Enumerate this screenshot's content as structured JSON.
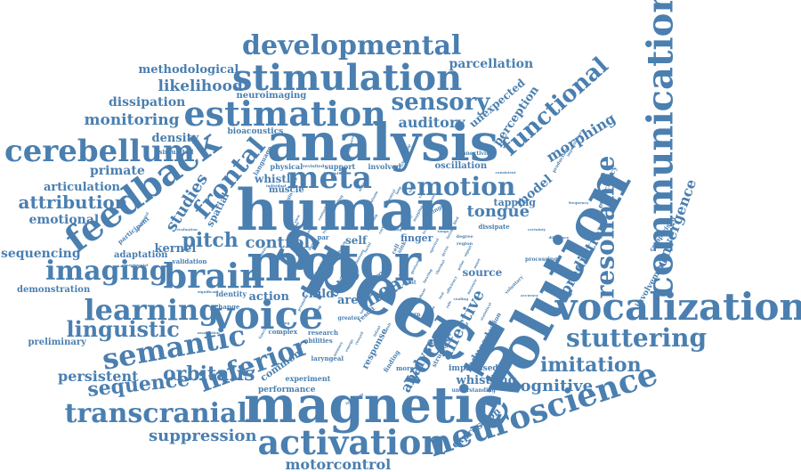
{
  "color": "#4a7fb0",
  "words": [
    {
      "text": "speech",
      "weight": 1.0,
      "orientation": "rotated"
    },
    {
      "text": "evolution",
      "weight": 0.9,
      "orientation": "rotated"
    },
    {
      "text": "human",
      "weight": 0.95,
      "orientation": "horizontal"
    },
    {
      "text": "analysis",
      "weight": 0.9,
      "orientation": "horizontal"
    },
    {
      "text": "magnetic",
      "weight": 0.85,
      "orientation": "horizontal"
    },
    {
      "text": "motor",
      "weight": 0.85,
      "orientation": "horizontal"
    },
    {
      "text": "voice",
      "weight": 0.7,
      "orientation": "horizontal"
    },
    {
      "text": "communication",
      "weight": 0.65,
      "orientation": "vertical"
    },
    {
      "text": "vocalization",
      "weight": 0.6,
      "orientation": "horizontal"
    },
    {
      "text": "neuroscience",
      "weight": 0.55,
      "orientation": "rotated"
    },
    {
      "text": "activation",
      "weight": 0.55,
      "orientation": "horizontal"
    },
    {
      "text": "stimulation",
      "weight": 0.55,
      "orientation": "horizontal"
    },
    {
      "text": "estimation",
      "weight": 0.5,
      "orientation": "horizontal"
    },
    {
      "text": "feedback",
      "weight": 0.55,
      "orientation": "rotated"
    },
    {
      "text": "brain",
      "weight": 0.5,
      "orientation": "horizontal"
    },
    {
      "text": "developmental",
      "weight": 0.45,
      "orientation": "horizontal"
    },
    {
      "text": "meta",
      "weight": 0.45,
      "orientation": "horizontal"
    },
    {
      "text": "cerebellum",
      "weight": 0.4,
      "orientation": "horizontal"
    },
    {
      "text": "learning",
      "weight": 0.4,
      "orientation": "horizontal"
    },
    {
      "text": "semantic",
      "weight": 0.4,
      "orientation": "horizontal"
    },
    {
      "text": "transcranial",
      "weight": 0.4,
      "orientation": "horizontal"
    },
    {
      "text": "imaging",
      "weight": 0.38,
      "orientation": "horizontal"
    },
    {
      "text": "emotion",
      "weight": 0.35,
      "orientation": "horizontal"
    },
    {
      "text": "stuttering",
      "weight": 0.35,
      "orientation": "horizontal"
    },
    {
      "text": "inferior",
      "weight": 0.38,
      "orientation": "rotated"
    },
    {
      "text": "resonance",
      "weight": 0.35,
      "orientation": "vertical"
    },
    {
      "text": "vocal",
      "weight": 0.35,
      "orientation": "rotated"
    },
    {
      "text": "frontal",
      "weight": 0.3,
      "orientation": "rotated"
    },
    {
      "text": "sensory",
      "weight": 0.3,
      "orientation": "horizontal"
    },
    {
      "text": "functional",
      "weight": 0.3,
      "orientation": "rotated"
    },
    {
      "text": "linguistic",
      "weight": 0.3,
      "orientation": "horizontal"
    },
    {
      "text": "imitation",
      "weight": 0.28,
      "orientation": "horizontal"
    },
    {
      "text": "sequence",
      "weight": 0.28,
      "orientation": "horizontal"
    },
    {
      "text": "suppression",
      "weight": 0.25,
      "orientation": "horizontal"
    },
    {
      "text": "orbitalis",
      "weight": 0.25,
      "orientation": "horizontal"
    },
    {
      "text": "attribution",
      "weight": 0.25,
      "orientation": "horizontal"
    },
    {
      "text": "pitch",
      "weight": 0.28,
      "orientation": "horizontal"
    },
    {
      "text": "heat",
      "weight": 0.28,
      "orientation": "rotated"
    },
    {
      "text": "cognitive",
      "weight": 0.25,
      "orientation": "horizontal"
    },
    {
      "text": "tongue",
      "weight": 0.22,
      "orientation": "horizontal"
    },
    {
      "text": "control",
      "weight": 0.22,
      "orientation": "horizontal"
    },
    {
      "text": "convergence",
      "weight": 0.2,
      "orientation": "rotated"
    },
    {
      "text": "prediction",
      "weight": 0.2,
      "orientation": "rotated"
    },
    {
      "text": "morphing",
      "weight": 0.2,
      "orientation": "rotated"
    },
    {
      "text": "perception",
      "weight": 0.18,
      "orientation": "rotated"
    },
    {
      "text": "affective",
      "weight": 0.2,
      "orientation": "rotated"
    },
    {
      "text": "analyse",
      "weight": 0.18,
      "orientation": "rotated"
    },
    {
      "text": "motorcontrol",
      "weight": 0.2,
      "orientation": "horizontal"
    },
    {
      "text": "persistent",
      "weight": 0.2,
      "orientation": "horizontal"
    },
    {
      "text": "likelihood",
      "weight": 0.2,
      "orientation": "horizontal"
    },
    {
      "text": "monitoring",
      "weight": 0.2,
      "orientation": "horizontal"
    },
    {
      "text": "auditory",
      "weight": 0.2,
      "orientation": "horizontal"
    },
    {
      "text": "studies",
      "weight": 0.2,
      "orientation": "rotated"
    },
    {
      "text": "sequencing",
      "weight": 0.18,
      "orientation": "horizontal"
    },
    {
      "text": "emotional",
      "weight": 0.18,
      "orientation": "horizontal"
    },
    {
      "text": "parcellation",
      "weight": 0.16,
      "orientation": "horizontal"
    },
    {
      "text": "methodological",
      "weight": 0.16,
      "orientation": "horizontal"
    },
    {
      "text": "dissipation",
      "weight": 0.16,
      "orientation": "horizontal"
    },
    {
      "text": "primate",
      "weight": 0.16,
      "orientation": "horizontal"
    },
    {
      "text": "articulation",
      "weight": 0.16,
      "orientation": "horizontal"
    },
    {
      "text": "density",
      "weight": 0.15,
      "orientation": "horizontal"
    },
    {
      "text": "unexpected",
      "weight": 0.14,
      "orientation": "rotated"
    },
    {
      "text": "model",
      "weight": 0.15,
      "orientation": "rotated"
    },
    {
      "text": "expression",
      "weight": 0.14,
      "orientation": "rotated"
    },
    {
      "text": "whistling",
      "weight": 0.14,
      "orientation": "horizontal"
    },
    {
      "text": "kernel",
      "weight": 0.14,
      "orientation": "horizontal"
    },
    {
      "text": "child",
      "weight": 0.14,
      "orientation": "horizontal"
    },
    {
      "text": "area",
      "weight": 0.14,
      "orientation": "horizontal"
    },
    {
      "text": "action",
      "weight": 0.14,
      "orientation": "horizontal"
    },
    {
      "text": "source",
      "weight": 0.13,
      "orientation": "horizontal"
    },
    {
      "text": "spatial",
      "weight": 0.12,
      "orientation": "rotated"
    },
    {
      "text": "tapping",
      "weight": 0.12,
      "orientation": "horizontal"
    },
    {
      "text": "whistle",
      "weight": 0.12,
      "orientation": "horizontal"
    },
    {
      "text": "finger",
      "weight": 0.12,
      "orientation": "horizontal"
    },
    {
      "text": "oscillation",
      "weight": 0.11,
      "orientation": "horizontal"
    },
    {
      "text": "common",
      "weight": 0.12,
      "orientation": "rotated"
    },
    {
      "text": "demonstration",
      "weight": 0.11,
      "orientation": "horizontal"
    },
    {
      "text": "preliminary",
      "weight": 0.11,
      "orientation": "horizontal"
    },
    {
      "text": "adaptation",
      "weight": 0.1,
      "orientation": "horizontal"
    },
    {
      "text": "improvised",
      "weight": 0.1,
      "orientation": "horizontal"
    },
    {
      "text": "neuroimaging",
      "weight": 0.1,
      "orientation": "horizontal"
    },
    {
      "text": "performance",
      "weight": 0.1,
      "orientation": "horizontal"
    },
    {
      "text": "experiment",
      "weight": 0.09,
      "orientation": "horizontal"
    },
    {
      "text": "involvement",
      "weight": 0.09,
      "orientation": "rotated"
    },
    {
      "text": "expectancy",
      "weight": 0.09,
      "orientation": "rotated"
    },
    {
      "text": "self",
      "weight": 0.12,
      "orientation": "horizontal"
    },
    {
      "text": "data",
      "weight": 0.12,
      "orientation": "rotated"
    },
    {
      "text": "induced",
      "weight": 0.12,
      "orientation": "rotated"
    },
    {
      "text": "response",
      "weight": 0.11,
      "orientation": "rotated"
    },
    {
      "text": "muscle",
      "weight": 0.1,
      "orientation": "horizontal"
    },
    {
      "text": "bioacoustics",
      "weight": 0.09,
      "orientation": "horizontal"
    },
    {
      "text": "physical",
      "weight": 0.08,
      "orientation": "horizontal"
    },
    {
      "text": "support",
      "weight": 0.08,
      "orientation": "horizontal"
    },
    {
      "text": "involved",
      "weight": 0.08,
      "orientation": "horizontal"
    },
    {
      "text": "connectivity",
      "weight": 0.06,
      "orientation": "horizontal"
    },
    {
      "text": "language",
      "weight": 0.07,
      "orientation": "rotated"
    },
    {
      "text": "participant",
      "weight": 0.07,
      "orientation": "rotated"
    },
    {
      "text": "identity",
      "weight": 0.08,
      "orientation": "horizontal"
    },
    {
      "text": "validation",
      "weight": 0.07,
      "orientation": "horizontal"
    },
    {
      "text": "simulated",
      "weight": 0.07,
      "orientation": "horizontal"
    },
    {
      "text": "laryngeal",
      "weight": 0.07,
      "orientation": "horizontal"
    },
    {
      "text": "understanding",
      "weight": 0.06,
      "orientation": "horizontal"
    },
    {
      "text": "research",
      "weight": 0.07,
      "orientation": "horizontal"
    },
    {
      "text": "complex",
      "weight": 0.07,
      "orientation": "horizontal"
    },
    {
      "text": "abilities",
      "weight": 0.07,
      "orientation": "horizontal"
    },
    {
      "text": "comparison",
      "weight": 0.07,
      "orientation": "rotated"
    },
    {
      "text": "processing",
      "weight": 0.06,
      "orientation": "horizontal"
    },
    {
      "text": "connection",
      "weight": 0.07,
      "orientation": "rotated"
    },
    {
      "text": "dissipate",
      "weight": 0.07,
      "orientation": "horizontal"
    },
    {
      "text": "pattern",
      "weight": 0.06,
      "orientation": "horizontal"
    },
    {
      "text": "greater",
      "weight": 0.06,
      "orientation": "horizontal"
    },
    {
      "text": "more",
      "weight": 0.07,
      "orientation": "horizontal"
    },
    {
      "text": "change",
      "weight": 0.07,
      "orientation": "horizontal"
    },
    {
      "text": "structure",
      "weight": 0.07,
      "orientation": "rotated"
    },
    {
      "text": "finding",
      "weight": 0.07,
      "orientation": "rotated"
    },
    {
      "text": "joint",
      "weight": 0.06,
      "orientation": "horizontal"
    },
    {
      "text": "error",
      "weight": 0.08,
      "orientation": "rotated"
    },
    {
      "text": "result",
      "weight": 0.07,
      "orientation": "rotated"
    },
    {
      "text": "par",
      "weight": 0.07,
      "orientation": "horizontal"
    },
    {
      "text": "region",
      "weight": 0.05,
      "orientation": "horizontal"
    },
    {
      "text": "degree",
      "weight": 0.05,
      "orientation": "horizontal"
    },
    {
      "text": "improvisation",
      "weight": 0.04,
      "orientation": "rotated"
    },
    {
      "text": "production",
      "weight": 0.05,
      "orientation": "rotated"
    },
    {
      "text": "significant",
      "weight": 0.04,
      "orientation": "horizontal"
    },
    {
      "text": "association",
      "weight": 0.04,
      "orientation": "horizontal"
    },
    {
      "text": "evaluation",
      "weight": 0.04,
      "orientation": "horizontal"
    },
    {
      "text": "experimental",
      "weight": 0.04,
      "orientation": "horizontal"
    },
    {
      "text": "recovered",
      "weight": 0.04,
      "orientation": "rotated"
    },
    {
      "text": "revisited",
      "weight": 0.05,
      "orientation": "horizontal"
    },
    {
      "text": "consistent",
      "weight": 0.04,
      "orientation": "horizontal"
    },
    {
      "text": "relationship",
      "weight": 0.04,
      "orientation": "rotated"
    },
    {
      "text": "singer",
      "weight": 0.06,
      "orientation": "rotated"
    },
    {
      "text": "individual",
      "weight": 0.04,
      "orientation": "horizontal"
    },
    {
      "text": "voluntary",
      "weight": 0.05,
      "orientation": "rotated"
    },
    {
      "text": "frequency",
      "weight": 0.04,
      "orientation": "horizontal"
    },
    {
      "text": "accuracy",
      "weight": 0.04,
      "orientation": "horizontal"
    },
    {
      "text": "difference",
      "weight": 0.04,
      "orientation": "horizontal"
    },
    {
      "text": "tango",
      "weight": 0.04,
      "orientation": "horizontal"
    },
    {
      "text": "certainty",
      "weight": 0.04,
      "orientation": "horizontal"
    },
    {
      "text": "statistical",
      "weight": 0.04,
      "orientation": "rotated"
    },
    {
      "text": "operational",
      "weight": 0.04,
      "orientation": "rotated"
    },
    {
      "text": "cell",
      "weight": 0.06,
      "orientation": "rotated"
    },
    {
      "text": "sink",
      "weight": 0.06,
      "orientation": "rotated"
    },
    {
      "text": "origin",
      "weight": 0.05,
      "orientation": "rotated"
    },
    {
      "text": "system",
      "weight": 0.04,
      "orientation": "rotated"
    },
    {
      "text": "function",
      "weight": 0.04,
      "orientation": "rotated"
    },
    {
      "text": "question",
      "weight": 0.04,
      "orientation": "rotated"
    },
    {
      "text": "synchrony",
      "weight": 0.04,
      "orientation": "rotated"
    },
    {
      "text": "tone",
      "weight": 0.04,
      "orientation": "rotated"
    },
    {
      "text": "contact",
      "weight": 0.04,
      "orientation": "rotated"
    },
    {
      "text": "taking",
      "weight": 0.04,
      "orientation": "horizontal"
    },
    {
      "text": "imitating",
      "weight": 0.04,
      "orientation": "rotated"
    },
    {
      "text": "faithful",
      "weight": 0.04,
      "orientation": "horizontal"
    },
    {
      "text": "rhythm",
      "weight": 0.04,
      "orientation": "rotated"
    },
    {
      "text": "listener",
      "weight": 0.04,
      "orientation": "rotated"
    },
    {
      "text": "facial",
      "weight": 0.04,
      "orientation": "rotated"
    },
    {
      "text": "neural",
      "weight": 0.04,
      "orientation": "rotated"
    },
    {
      "text": "cortical",
      "weight": 0.04,
      "orientation": "rotated"
    },
    {
      "text": "coupling",
      "weight": 0.04,
      "orientation": "rotated"
    },
    {
      "text": "ventral",
      "weight": 0.04,
      "orientation": "rotated"
    },
    {
      "text": "gesture",
      "weight": 0.04,
      "orientation": "rotated"
    },
    {
      "text": "thermal",
      "weight": 0.04,
      "orientation": "rotated"
    },
    {
      "text": "spectral",
      "weight": 0.04,
      "orientation": "rotated"
    },
    {
      "text": "efficiency",
      "weight": 0.04,
      "orientation": "rotated"
    },
    {
      "text": "cooling",
      "weight": 0.04,
      "orientation": "horizontal"
    },
    {
      "text": "syntax",
      "weight": 0.04,
      "orientation": "rotated"
    },
    {
      "text": "subjects",
      "weight": 0.04,
      "orientation": "rotated"
    },
    {
      "text": "cortex",
      "weight": 0.04,
      "orientation": "rotated"
    },
    {
      "text": "timing",
      "weight": 0.04,
      "orientation": "rotated"
    },
    {
      "text": "premotor",
      "weight": 0.04,
      "orientation": "rotated"
    },
    {
      "text": "network",
      "weight": 0.04,
      "orientation": "rotated"
    },
    {
      "text": "song",
      "weight": 0.04,
      "orientation": "horizontal"
    },
    {
      "text": "pathway",
      "weight": 0.04,
      "orientation": "rotated"
    },
    {
      "text": "mapping",
      "weight": 0.04,
      "orientation": "rotated"
    },
    {
      "text": "tract",
      "weight": 0.04,
      "orientation": "rotated"
    },
    {
      "text": "hearing",
      "weight": 0.04,
      "orientation": "rotated"
    },
    {
      "text": "gyrus",
      "weight": 0.04,
      "orientation": "rotated"
    },
    {
      "text": "larynx",
      "weight": 0.04,
      "orientation": "rotated"
    },
    {
      "text": "bird",
      "weight": 0.04,
      "orientation": "rotated"
    },
    {
      "text": "pulse",
      "weight": 0.04,
      "orientation": "rotated"
    },
    {
      "text": "signal",
      "weight": 0.04,
      "orientation": "rotated"
    },
    {
      "text": "measure",
      "weight": 0.04,
      "orientation": "rotated"
    },
    {
      "text": "onset",
      "weight": 0.04,
      "orientation": "rotated"
    },
    {
      "text": "phase",
      "weight": 0.04,
      "orientation": "rotated"
    },
    {
      "text": "scale",
      "weight": 0.04,
      "orientation": "rotated"
    },
    {
      "text": "adult",
      "weight": 0.04,
      "orientation": "rotated"
    },
    {
      "text": "infant",
      "weight": 0.04,
      "orientation": "rotated"
    },
    {
      "text": "reward",
      "weight": 0.04,
      "orientation": "rotated"
    },
    {
      "text": "energy",
      "weight": 0.04,
      "orientation": "rotated"
    },
    {
      "text": "memory",
      "weight": 0.04,
      "orientation": "rotated"
    },
    {
      "text": "volume",
      "weight": 0.04,
      "orientation": "rotated"
    },
    {
      "text": "state",
      "weight": 0.04,
      "orientation": "rotated"
    },
    {
      "text": "loop",
      "weight": 0.04,
      "orientation": "rotated"
    },
    {
      "text": "task",
      "weight": 0.04,
      "orientation": "rotated"
    },
    {
      "text": "view",
      "weight": 0.04,
      "orientation": "rotated"
    },
    {
      "text": "level",
      "weight": 0.04,
      "orientation": "rotated"
    },
    {
      "text": "novel",
      "weight": 0.04,
      "orientation": "rotated"
    },
    {
      "text": "form",
      "weight": 0.04,
      "orientation": "rotated"
    },
    {
      "text": "type",
      "weight": 0.04,
      "orientation": "rotated"
    },
    {
      "text": "word",
      "weight": 0.04,
      "orientation": "rotated"
    },
    {
      "text": "case",
      "weight": 0.04,
      "orientation": "rotated"
    },
    {
      "text": "test",
      "weight": 0.04,
      "orientation": "rotated"
    },
    {
      "text": "role",
      "weight": 0.04,
      "orientation": "rotated"
    },
    {
      "text": "lobe",
      "weight": 0.04,
      "orientation": "rotated"
    },
    {
      "text": "skin",
      "weight": 0.04,
      "orientation": "rotated"
    }
  ]
}
